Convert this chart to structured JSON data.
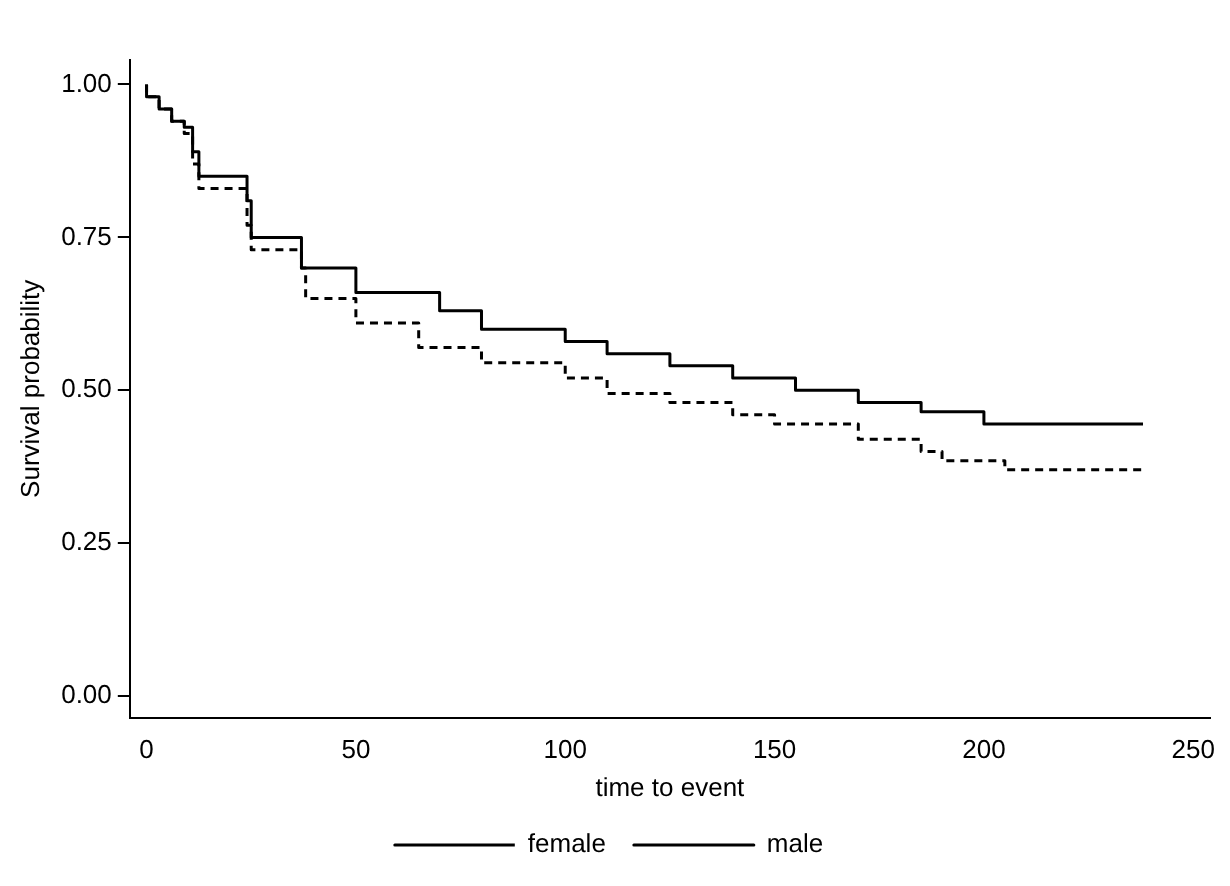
{
  "chart_data": {
    "type": "step",
    "xlabel": "time to event",
    "ylabel": "Survival probability",
    "xlim": [
      -4,
      254
    ],
    "ylim": [
      -0.035,
      1.04
    ],
    "xticks": [
      0,
      50,
      100,
      150,
      200,
      250
    ],
    "yticks": [
      {
        "value": 0,
        "label": "0.00"
      },
      {
        "value": 0.25,
        "label": "0.25"
      },
      {
        "value": 0.5,
        "label": "0.50"
      },
      {
        "value": 0.75,
        "label": "0.75"
      },
      {
        "value": 1,
        "label": "1.00"
      }
    ],
    "grid": false,
    "legend": "bottom",
    "marker": "none",
    "series": [
      {
        "name": "female",
        "color": "#000000",
        "line_style": "dashed",
        "x": [
          0,
          3,
          6,
          9,
          11,
          12.5,
          24,
          25,
          37,
          38,
          50,
          65,
          80,
          100,
          110,
          125,
          140,
          150,
          170,
          185,
          190,
          205,
          211,
          238
        ],
        "values": [
          1,
          0.98,
          0.96,
          0.94,
          0.92,
          0.87,
          0.83,
          0.77,
          0.73,
          0.7,
          0.65,
          0.61,
          0.57,
          0.545,
          0.52,
          0.495,
          0.48,
          0.46,
          0.445,
          0.42,
          0.4,
          0.385,
          0.37,
          0.37
        ]
      },
      {
        "name": "male",
        "color": "#000000",
        "line_style": "solid",
        "x": [
          0,
          3,
          6,
          9,
          11,
          12.5,
          24,
          25,
          37,
          50,
          70,
          80,
          100,
          110,
          125,
          140,
          155,
          170,
          185,
          200,
          215,
          238
        ],
        "values": [
          1,
          0.98,
          0.96,
          0.94,
          0.93,
          0.89,
          0.85,
          0.81,
          0.75,
          0.7,
          0.66,
          0.63,
          0.6,
          0.58,
          0.56,
          0.54,
          0.52,
          0.5,
          0.48,
          0.465,
          0.445,
          0.445
        ]
      }
    ]
  }
}
